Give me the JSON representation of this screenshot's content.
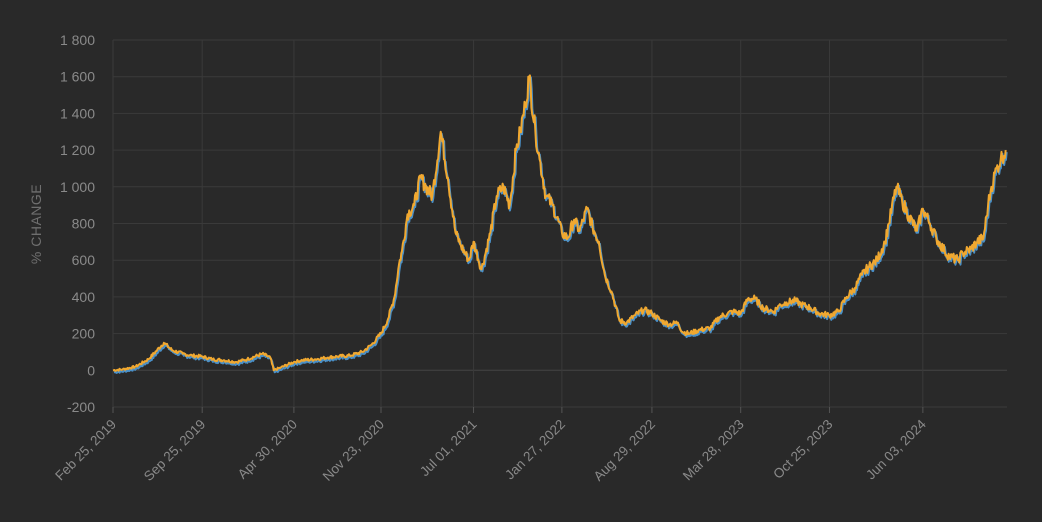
{
  "colors": {
    "background": "#292929",
    "grid": "#3a3a3a",
    "text": "#8a8a8a",
    "series_main": "#f0a830",
    "series_shadow": "#4a90c8"
  },
  "chart_data": {
    "type": "line",
    "ylabel": "% CHANGE",
    "ylim": [
      -200,
      1800
    ],
    "yticks": [
      -200,
      0,
      200,
      400,
      600,
      800,
      1000,
      1200,
      1400,
      1600,
      1800
    ],
    "ytick_labels": [
      "-200",
      "0",
      "200",
      "400",
      "600",
      "800",
      "1 000",
      "1 200",
      "1 400",
      "1 600",
      "1 800"
    ],
    "xlim": [
      "2019-02-25",
      "2024-12-20"
    ],
    "xticks": [
      "2019-02-25",
      "2019-09-25",
      "2020-04-30",
      "2020-11-23",
      "2021-07-01",
      "2022-01-27",
      "2022-08-29",
      "2023-03-28",
      "2023-10-25",
      "2024-06-03"
    ],
    "xtick_labels": [
      "Feb 25, 2019",
      "Sep 25, 2019",
      "Apr 30, 2020",
      "Nov 23, 2020",
      "Jul 01, 2021",
      "Jan 27, 2022",
      "Aug 29, 2022",
      "Mar 28, 2023",
      "Oct 25, 2023",
      "Jun 03, 2024"
    ],
    "grid": true,
    "series": [
      {
        "x": [
          "2019-02-25",
          "2019-03-20",
          "2019-04-20",
          "2019-05-20",
          "2019-06-10",
          "2019-06-26",
          "2019-07-15",
          "2019-08-10",
          "2019-09-01",
          "2019-09-25",
          "2019-10-20",
          "2019-11-15",
          "2019-12-15",
          "2020-01-10",
          "2020-02-15",
          "2020-03-05",
          "2020-03-13",
          "2020-03-30",
          "2020-04-30",
          "2020-05-20",
          "2020-06-20",
          "2020-07-20",
          "2020-08-10",
          "2020-09-10",
          "2020-10-10",
          "2020-11-01",
          "2020-11-23",
          "2020-12-10",
          "2020-12-25",
          "2021-01-05",
          "2021-01-12",
          "2021-01-25",
          "2021-02-10",
          "2021-02-25",
          "2021-03-10",
          "2021-03-25",
          "2021-04-14",
          "2021-05-01",
          "2021-05-19",
          "2021-06-01",
          "2021-06-20",
          "2021-07-01",
          "2021-07-20",
          "2021-08-10",
          "2021-08-25",
          "2021-09-10",
          "2021-09-25",
          "2021-10-10",
          "2021-10-20",
          "2021-11-01",
          "2021-11-10",
          "2021-11-25",
          "2021-12-05",
          "2021-12-20",
          "2022-01-05",
          "2022-01-27",
          "2022-02-10",
          "2022-02-25",
          "2022-03-10",
          "2022-03-28",
          "2022-04-10",
          "2022-04-25",
          "2022-05-09",
          "2022-05-25",
          "2022-06-13",
          "2022-06-30",
          "2022-07-20",
          "2022-08-10",
          "2022-08-29",
          "2022-09-20",
          "2022-10-10",
          "2022-10-30",
          "2022-11-09",
          "2022-11-25",
          "2022-12-20",
          "2023-01-15",
          "2023-02-05",
          "2023-02-25",
          "2023-03-10",
          "2023-03-28",
          "2023-04-14",
          "2023-05-01",
          "2023-05-20",
          "2023-06-15",
          "2023-06-25",
          "2023-07-15",
          "2023-08-05",
          "2023-08-18",
          "2023-09-10",
          "2023-10-01",
          "2023-10-25",
          "2023-11-15",
          "2023-12-05",
          "2023-12-25",
          "2024-01-10",
          "2024-01-25",
          "2024-02-15",
          "2024-03-05",
          "2024-03-14",
          "2024-04-01",
          "2024-04-15",
          "2024-05-01",
          "2024-05-20",
          "2024-06-03",
          "2024-06-20",
          "2024-07-05",
          "2024-07-25",
          "2024-08-05",
          "2024-08-25",
          "2024-09-06",
          "2024-09-25",
          "2024-10-10",
          "2024-10-25",
          "2024-11-05",
          "2024-11-13",
          "2024-11-25",
          "2024-12-05",
          "2024-12-17"
        ],
        "values": [
          0,
          5,
          20,
          60,
          110,
          150,
          110,
          90,
          80,
          75,
          60,
          55,
          45,
          60,
          90,
          70,
          0,
          15,
          45,
          55,
          60,
          70,
          75,
          80,
          100,
          140,
          200,
          280,
          400,
          580,
          650,
          850,
          900,
          1050,
          1000,
          950,
          1300,
          1050,
          750,
          680,
          600,
          700,
          550,
          750,
          950,
          1000,
          900,
          1200,
          1300,
          1450,
          1600,
          1300,
          1150,
          950,
          900,
          750,
          720,
          820,
          760,
          880,
          780,
          700,
          520,
          430,
          270,
          260,
          300,
          330,
          310,
          270,
          250,
          260,
          210,
          200,
          220,
          230,
          290,
          310,
          320,
          310,
          390,
          390,
          340,
          320,
          350,
          370,
          380,
          360,
          340,
          310,
          300,
          320,
          400,
          450,
          520,
          560,
          600,
          700,
          800,
          1000,
          920,
          840,
          760,
          880,
          800,
          720,
          650,
          620,
          600,
          640,
          660,
          700,
          720,
          900,
          1000,
          1100,
          1150,
          1200
        ]
      }
    ]
  }
}
